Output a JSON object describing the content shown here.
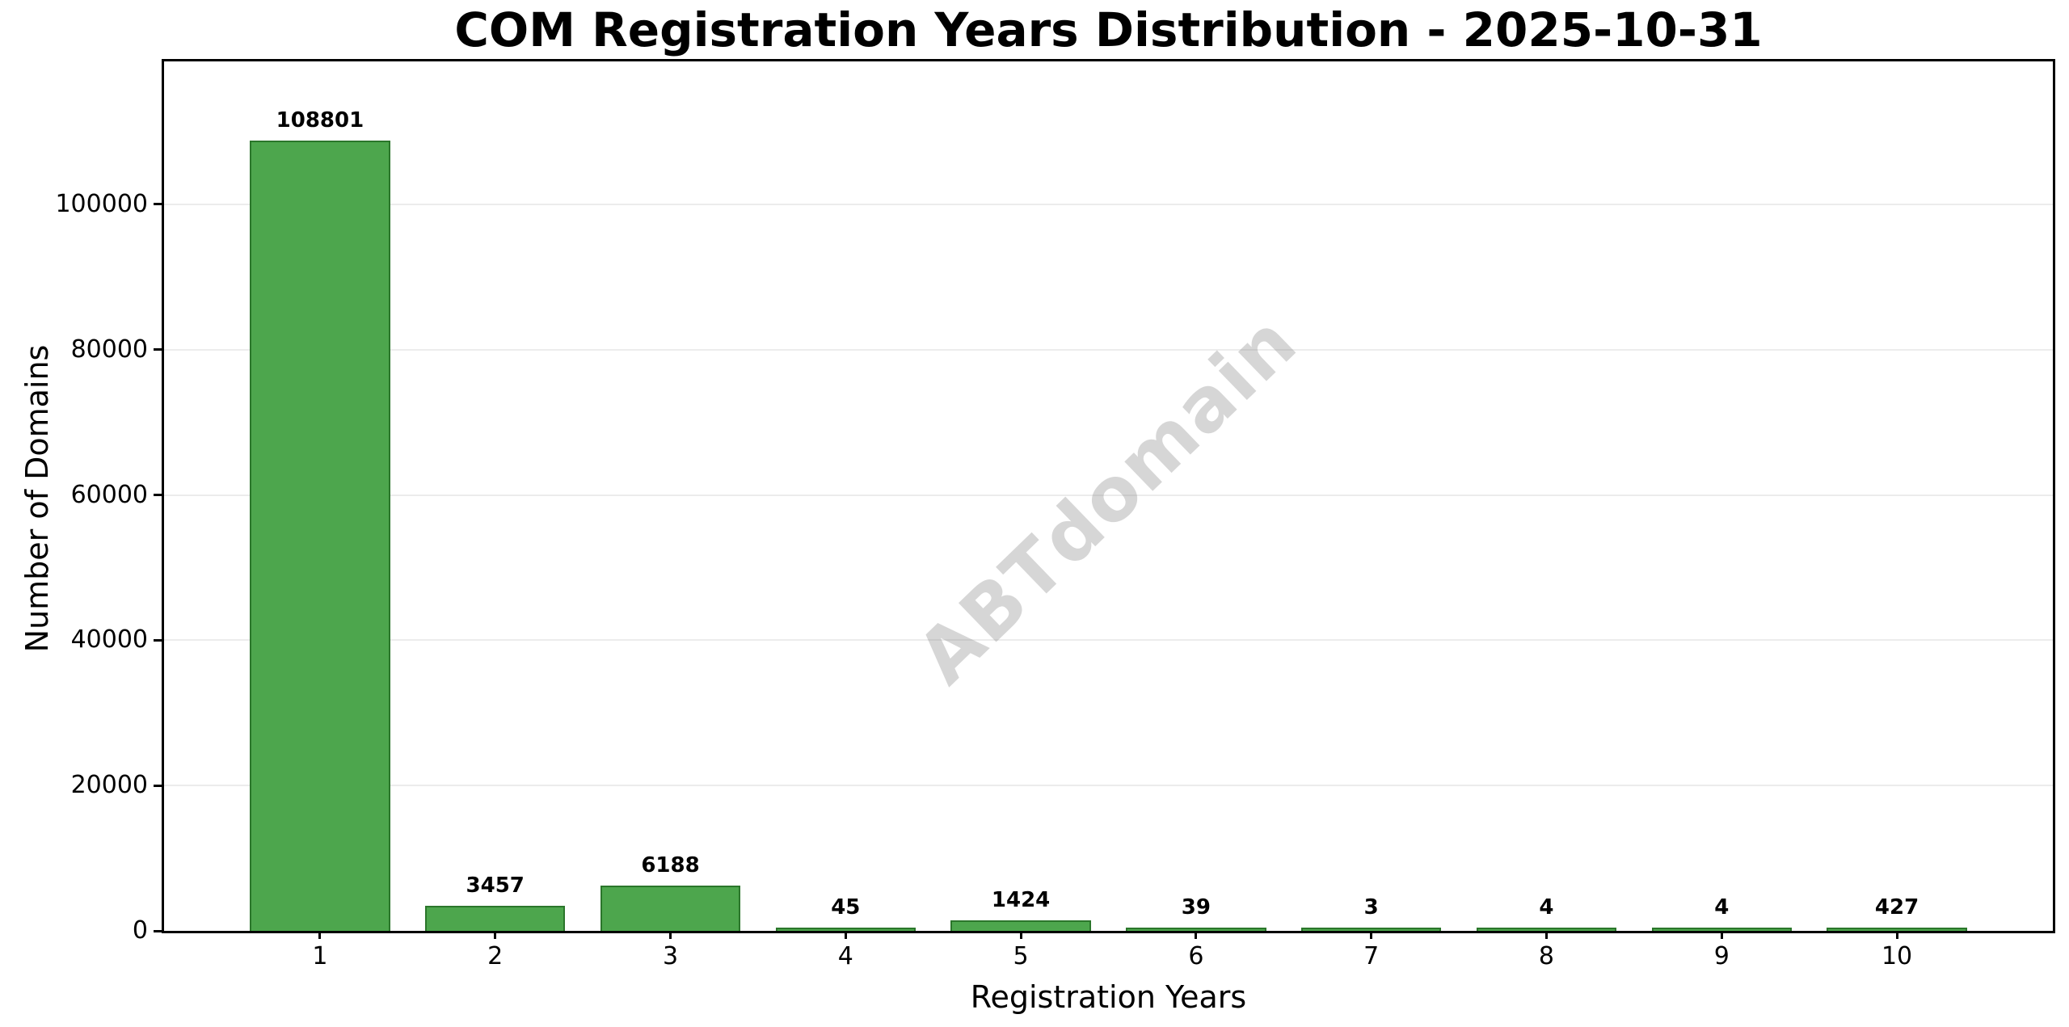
{
  "watermark": "ABTdomain",
  "chart_data": {
    "type": "bar",
    "title": "COM Registration Years Distribution - 2025-10-31",
    "xlabel": "Registration Years",
    "ylabel": "Number of Domains",
    "categories": [
      "1",
      "2",
      "3",
      "4",
      "5",
      "6",
      "7",
      "8",
      "9",
      "10"
    ],
    "values": [
      108801,
      3457,
      6188,
      45,
      1424,
      39,
      3,
      4,
      4,
      427
    ],
    "bar_labels": [
      "108801",
      "3457",
      "6188",
      "45",
      "1424",
      "39",
      "3",
      "4",
      "4",
      "427"
    ],
    "yticks": [
      0,
      20000,
      40000,
      60000,
      80000,
      100000
    ],
    "ytick_labels": [
      "0",
      "20000",
      "40000",
      "60000",
      "80000",
      "100000"
    ],
    "ylim": [
      0,
      119680
    ],
    "xlim": [
      0.11,
      10.89
    ],
    "bar_width_units": 0.8,
    "grid": true,
    "legend": null,
    "watermark": "ABTdomain",
    "colors": {
      "bar_fill": "#4da64d",
      "bar_edge": "#2b762b",
      "grid": "#ececec",
      "axis": "#000000",
      "watermark": "#d6d6d6",
      "background": "#ffffff"
    }
  }
}
